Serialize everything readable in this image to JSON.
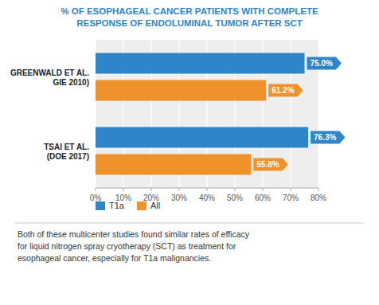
{
  "chart_data": {
    "type": "bar",
    "orientation": "horizontal",
    "title": "% OF ESOPHAGEAL CANCER PATIENTS WITH COMPLETE\nRESPONSE OF ENDOLUMINAL TUMOR AFTER SCT",
    "categories": [
      "GREENWALD ET AL.\nGIE 2010)",
      "TSAI ET AL.\n(DOE 2017)"
    ],
    "series": [
      {
        "name": "T1a",
        "color": "#2E86C8",
        "values": [
          75.0,
          76.3
        ],
        "value_labels": [
          "75.0%",
          "76.3%"
        ]
      },
      {
        "name": "All",
        "color": "#F0922B",
        "values": [
          61.2,
          55.8
        ],
        "value_labels": [
          "61.2%",
          "55.8%"
        ]
      }
    ],
    "xlim": [
      0,
      80
    ],
    "xticks": [
      {
        "value": 0,
        "label": "0%"
      },
      {
        "value": 10,
        "label": "10%"
      },
      {
        "value": 20,
        "label": "20%"
      },
      {
        "value": 30,
        "label": "30%"
      },
      {
        "value": 40,
        "label": "40%"
      },
      {
        "value": 50,
        "label": "50%"
      },
      {
        "value": 60,
        "label": "60%"
      },
      {
        "value": 70,
        "label": "70%"
      },
      {
        "value": 80,
        "label": "80%"
      }
    ],
    "grid": true,
    "legend": "bottom",
    "data_labels": true,
    "footnote": [
      "Both of these multicenter studies found similar rates of efficacy",
      "for liquid nitrogen spray cryotherapy (SCT) as treatment for",
      "esophageal cancer, especially for T1a malignancies."
    ]
  }
}
